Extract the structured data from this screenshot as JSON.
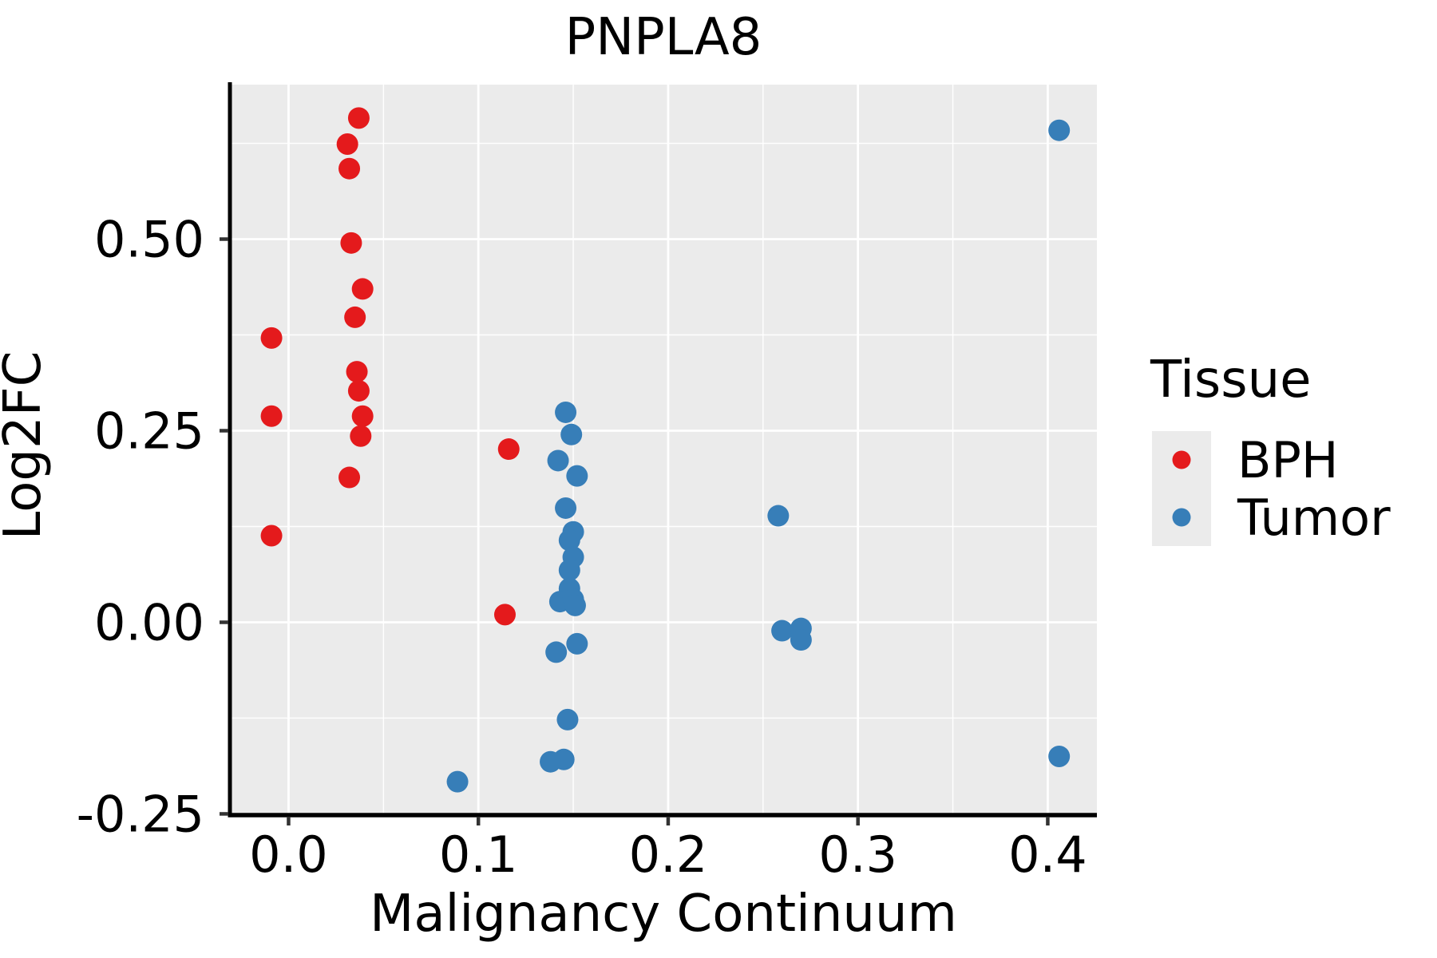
{
  "title": "PNPLA8",
  "axes": {
    "x_label": "Malignancy Continuum",
    "y_label": "Log2FC",
    "x_ticks": {
      "values": [
        0.0,
        0.1,
        0.2,
        0.3,
        0.4
      ],
      "labels": [
        "0.0",
        "0.1",
        "0.2",
        "0.3",
        "0.4"
      ]
    },
    "y_ticks": {
      "values": [
        -0.25,
        0.0,
        0.25,
        0.5
      ],
      "labels": [
        "-0.25",
        "0.00",
        "0.25",
        "0.50"
      ]
    },
    "x_minor": [
      0.05,
      0.15,
      0.25,
      0.35
    ],
    "y_minor": [
      -0.125,
      0.125,
      0.375,
      0.625
    ]
  },
  "legend": {
    "title": "Tissue",
    "items": [
      {
        "label": "BPH",
        "color": "#e41a1c"
      },
      {
        "label": "Tumor",
        "color": "#377eb8"
      }
    ]
  },
  "colors": {
    "panel_bg": "#ebebeb",
    "gridline": "#ffffff",
    "spine": "#000000",
    "tick_mark": "#333333",
    "text": "#000000",
    "legend_key_bg": "#ebebeb",
    "bph": "#e41a1c",
    "tumor": "#377eb8"
  },
  "chart_data": {
    "type": "scatter",
    "title": "PNPLA8",
    "xlabel": "Malignancy Continuum",
    "ylabel": "Log2FC",
    "xlim": [
      -0.0309,
      0.4259
    ],
    "ylim": [
      -0.2516,
      0.7016
    ],
    "grid": "white major and minor gridlines on gray panel",
    "legend_position": "right",
    "series": [
      {
        "name": "BPH",
        "color": "#e41a1c",
        "points": [
          [
            -0.009,
            0.371
          ],
          [
            -0.009,
            0.269
          ],
          [
            -0.009,
            0.113
          ],
          [
            0.037,
            0.658
          ],
          [
            0.031,
            0.624
          ],
          [
            0.032,
            0.592
          ],
          [
            0.033,
            0.495
          ],
          [
            0.039,
            0.435
          ],
          [
            0.035,
            0.398
          ],
          [
            0.036,
            0.327
          ],
          [
            0.037,
            0.302
          ],
          [
            0.039,
            0.269
          ],
          [
            0.038,
            0.243
          ],
          [
            0.032,
            0.189
          ],
          [
            0.116,
            0.226
          ],
          [
            0.114,
            0.01
          ]
        ]
      },
      {
        "name": "Tumor",
        "color": "#377eb8",
        "points": [
          [
            0.146,
            0.274
          ],
          [
            0.149,
            0.245
          ],
          [
            0.142,
            0.211
          ],
          [
            0.152,
            0.191
          ],
          [
            0.146,
            0.149
          ],
          [
            0.15,
            0.118
          ],
          [
            0.148,
            0.107
          ],
          [
            0.15,
            0.085
          ],
          [
            0.148,
            0.068
          ],
          [
            0.148,
            0.044
          ],
          [
            0.143,
            0.027
          ],
          [
            0.15,
            0.03
          ],
          [
            0.151,
            0.022
          ],
          [
            0.152,
            -0.028
          ],
          [
            0.141,
            -0.039
          ],
          [
            0.147,
            -0.127
          ],
          [
            0.145,
            -0.179
          ],
          [
            0.138,
            -0.182
          ],
          [
            0.089,
            -0.208
          ],
          [
            0.258,
            0.139
          ],
          [
            0.26,
            -0.011
          ],
          [
            0.27,
            -0.008
          ],
          [
            0.27,
            -0.023
          ],
          [
            0.406,
            0.642
          ],
          [
            0.406,
            -0.175
          ]
        ]
      }
    ]
  }
}
